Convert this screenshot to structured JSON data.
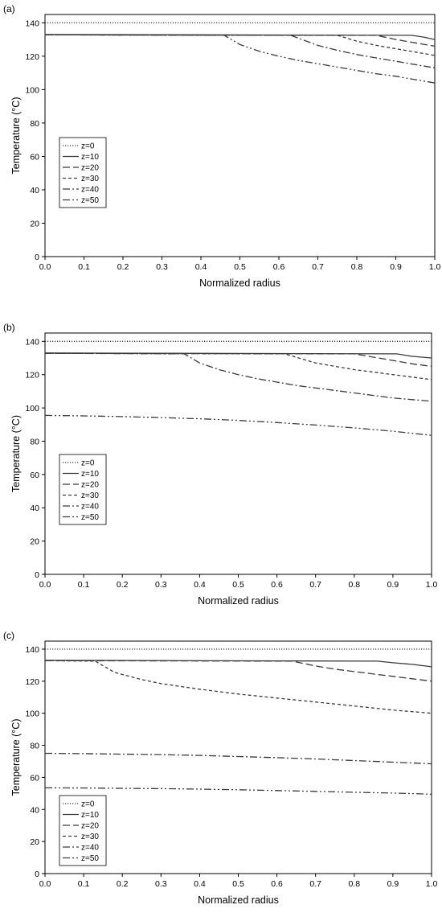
{
  "chart_data": [
    {
      "type": "line",
      "panel_label": "(a)",
      "xlabel": "Normalized radius",
      "ylabel": "Temperature (°C)",
      "xlim": [
        0,
        1
      ],
      "ylim": [
        0,
        145
      ],
      "xticks": [
        0.0,
        0.1,
        0.2,
        0.3,
        0.4,
        0.5,
        0.6,
        0.7,
        0.8,
        0.9,
        1.0
      ],
      "xtick_labels": [
        "0.0",
        "0.1",
        "0.2",
        "0.3",
        "0.4",
        "0.5",
        "0.6",
        "0.7",
        "0.8",
        "0.9",
        "1.0"
      ],
      "yticks": [
        0,
        20,
        40,
        60,
        80,
        100,
        120,
        140
      ],
      "ytick_labels": [
        "0",
        "20",
        "40",
        "60",
        "80",
        "100",
        "120",
        "140"
      ],
      "grid": false,
      "legend_position": "middle-left",
      "series": [
        {
          "name": "z=0",
          "dash": "dot",
          "points": [
            [
              0,
              140
            ],
            [
              1,
              140
            ]
          ]
        },
        {
          "name": "z=10",
          "dash": "solid",
          "points": [
            [
              0,
              133
            ],
            [
              0.94,
              132.5
            ],
            [
              0.97,
              131.5
            ],
            [
              1.0,
              130
            ]
          ]
        },
        {
          "name": "z=20",
          "dash": "dash",
          "points": [
            [
              0,
              132.8
            ],
            [
              0.85,
              132.5
            ],
            [
              0.9,
              130
            ],
            [
              0.95,
              128
            ],
            [
              1.0,
              126
            ]
          ]
        },
        {
          "name": "z=30",
          "dash": "shortdash",
          "points": [
            [
              0,
              132.8
            ],
            [
              0.75,
              132.5
            ],
            [
              0.8,
              129
            ],
            [
              0.85,
              126.5
            ],
            [
              0.9,
              124.5
            ],
            [
              0.95,
              122.5
            ],
            [
              1.0,
              120.5
            ]
          ]
        },
        {
          "name": "z=40",
          "dash": "dashdot",
          "points": [
            [
              0,
              132.8
            ],
            [
              0.63,
              132.5
            ],
            [
              0.7,
              126.5
            ],
            [
              0.75,
              123.5
            ],
            [
              0.8,
              121
            ],
            [
              0.85,
              119
            ],
            [
              0.9,
              117
            ],
            [
              0.95,
              115
            ],
            [
              1.0,
              113
            ]
          ]
        },
        {
          "name": "z=50",
          "dash": "dashdotdot",
          "points": [
            [
              0,
              132.8
            ],
            [
              0.46,
              132.5
            ],
            [
              0.5,
              127
            ],
            [
              0.55,
              123
            ],
            [
              0.6,
              120
            ],
            [
              0.65,
              117.5
            ],
            [
              0.7,
              115.5
            ],
            [
              0.75,
              113.5
            ],
            [
              0.8,
              111.5
            ],
            [
              0.85,
              109.5
            ],
            [
              0.9,
              108
            ],
            [
              0.95,
              106
            ],
            [
              1.0,
              104
            ]
          ]
        }
      ]
    },
    {
      "type": "line",
      "panel_label": "(b)",
      "xlabel": "Normalized radius",
      "ylabel": "Temperature (°C)",
      "xlim": [
        0,
        1
      ],
      "ylim": [
        0,
        145
      ],
      "xticks": [
        0.0,
        0.1,
        0.2,
        0.3,
        0.4,
        0.5,
        0.6,
        0.7,
        0.8,
        0.9,
        1.0
      ],
      "xtick_labels": [
        "0.0",
        "0.1",
        "0.2",
        "0.3",
        "0.4",
        "0.5",
        "0.6",
        "0.7",
        "0.8",
        "0.9",
        "1.0"
      ],
      "yticks": [
        0,
        20,
        40,
        60,
        80,
        100,
        120,
        140
      ],
      "ytick_labels": [
        "0",
        "20",
        "40",
        "60",
        "80",
        "100",
        "120",
        "140"
      ],
      "grid": false,
      "legend_position": "bottom-left",
      "series": [
        {
          "name": "z=0",
          "dash": "dot",
          "points": [
            [
              0,
              140
            ],
            [
              1,
              140
            ]
          ]
        },
        {
          "name": "z=10",
          "dash": "solid",
          "points": [
            [
              0,
              133
            ],
            [
              0.91,
              132.5
            ],
            [
              0.95,
              131
            ],
            [
              1.0,
              130
            ]
          ]
        },
        {
          "name": "z=20",
          "dash": "dash",
          "points": [
            [
              0,
              132.8
            ],
            [
              0.8,
              132.5
            ],
            [
              0.85,
              130.5
            ],
            [
              0.9,
              128.5
            ],
            [
              0.95,
              126.5
            ],
            [
              1.0,
              125
            ]
          ]
        },
        {
          "name": "z=30",
          "dash": "shortdash",
          "points": [
            [
              0,
              132.8
            ],
            [
              0.62,
              132.5
            ],
            [
              0.7,
              127
            ],
            [
              0.75,
              125
            ],
            [
              0.8,
              123
            ],
            [
              0.85,
              121.5
            ],
            [
              0.9,
              120
            ],
            [
              0.95,
              118.5
            ],
            [
              1.0,
              117
            ]
          ]
        },
        {
          "name": "z=40",
          "dash": "dashdot",
          "points": [
            [
              0,
              132.8
            ],
            [
              0.36,
              132.5
            ],
            [
              0.4,
              127
            ],
            [
              0.45,
              123
            ],
            [
              0.5,
              120
            ],
            [
              0.55,
              117.5
            ],
            [
              0.6,
              115.5
            ],
            [
              0.65,
              113.5
            ],
            [
              0.7,
              112
            ],
            [
              0.75,
              110.5
            ],
            [
              0.8,
              109
            ],
            [
              0.85,
              107.5
            ],
            [
              0.9,
              106
            ],
            [
              0.95,
              105
            ],
            [
              1.0,
              104
            ]
          ]
        },
        {
          "name": "z=50",
          "dash": "dashdotdot",
          "points": [
            [
              0,
              95.5
            ],
            [
              0.1,
              95.2
            ],
            [
              0.2,
              94.8
            ],
            [
              0.3,
              94.2
            ],
            [
              0.4,
              93.5
            ],
            [
              0.5,
              92.5
            ],
            [
              0.6,
              91.2
            ],
            [
              0.7,
              89.7
            ],
            [
              0.8,
              88
            ],
            [
              0.9,
              86
            ],
            [
              1.0,
              83.5
            ]
          ]
        }
      ]
    },
    {
      "type": "line",
      "panel_label": "(c)",
      "xlabel": "Normalized radius",
      "ylabel": "Temperature (°C)",
      "xlim": [
        0,
        1
      ],
      "ylim": [
        0,
        145
      ],
      "xticks": [
        0.0,
        0.1,
        0.2,
        0.3,
        0.4,
        0.5,
        0.6,
        0.7,
        0.8,
        0.9,
        1.0
      ],
      "xtick_labels": [
        "0.0",
        "0.1",
        "0.2",
        "0.3",
        "0.4",
        "0.5",
        "0.6",
        "0.7",
        "0.8",
        "0.9",
        "1.0"
      ],
      "yticks": [
        0,
        20,
        40,
        60,
        80,
        100,
        120,
        140
      ],
      "ytick_labels": [
        "0",
        "20",
        "40",
        "60",
        "80",
        "100",
        "120",
        "140"
      ],
      "grid": false,
      "legend_position": "bottom-left",
      "series": [
        {
          "name": "z=0",
          "dash": "dot",
          "points": [
            [
              0,
              140
            ],
            [
              1,
              140
            ]
          ]
        },
        {
          "name": "z=10",
          "dash": "solid",
          "points": [
            [
              0,
              133
            ],
            [
              0.86,
              132.5
            ],
            [
              0.9,
              131.5
            ],
            [
              0.95,
              130.5
            ],
            [
              1.0,
              129
            ]
          ]
        },
        {
          "name": "z=20",
          "dash": "dash",
          "points": [
            [
              0,
              132.8
            ],
            [
              0.64,
              132.5
            ],
            [
              0.7,
              129.5
            ],
            [
              0.75,
              127.5
            ],
            [
              0.8,
              126
            ],
            [
              0.85,
              124.5
            ],
            [
              0.9,
              123
            ],
            [
              0.95,
              121.5
            ],
            [
              1.0,
              120
            ]
          ]
        },
        {
          "name": "z=30",
          "dash": "shortdash",
          "points": [
            [
              0,
              132.8
            ],
            [
              0.13,
              132.5
            ],
            [
              0.18,
              125.5
            ],
            [
              0.25,
              121
            ],
            [
              0.3,
              118.5
            ],
            [
              0.4,
              115
            ],
            [
              0.5,
              112
            ],
            [
              0.6,
              109.5
            ],
            [
              0.7,
              107
            ],
            [
              0.8,
              104.5
            ],
            [
              0.9,
              102
            ],
            [
              1.0,
              100
            ]
          ]
        },
        {
          "name": "z=40",
          "dash": "dashdot",
          "points": [
            [
              0,
              75
            ],
            [
              0.1,
              74.8
            ],
            [
              0.2,
              74.5
            ],
            [
              0.3,
              74.2
            ],
            [
              0.4,
              73.7
            ],
            [
              0.5,
              73
            ],
            [
              0.6,
              72.3
            ],
            [
              0.7,
              71.5
            ],
            [
              0.8,
              70.5
            ],
            [
              0.9,
              69.5
            ],
            [
              1.0,
              68.5
            ]
          ]
        },
        {
          "name": "z=50",
          "dash": "dashdotdot",
          "points": [
            [
              0,
              53.5
            ],
            [
              0.1,
              53.4
            ],
            [
              0.2,
              53.2
            ],
            [
              0.3,
              53
            ],
            [
              0.4,
              52.7
            ],
            [
              0.5,
              52.3
            ],
            [
              0.6,
              51.8
            ],
            [
              0.7,
              51.3
            ],
            [
              0.8,
              50.7
            ],
            [
              0.9,
              50.2
            ],
            [
              1.0,
              49.5
            ]
          ]
        }
      ]
    }
  ]
}
